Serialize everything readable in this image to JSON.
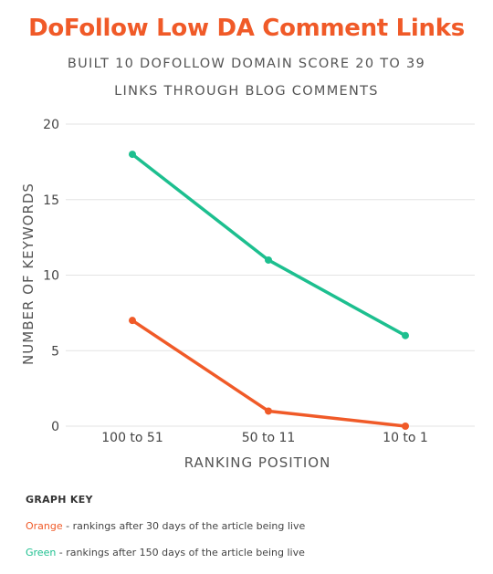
{
  "header": {
    "title": "DoFollow Low DA Comment Links",
    "subtitle_line1": "BUILT 10 DOFOLLOW DOMAIN SCORE 20 TO 39",
    "subtitle_line2": "LINKS THROUGH BLOG COMMENTS"
  },
  "colors": {
    "title": "#f05a28",
    "orange_series": "#f05a28",
    "green_series": "#1dbf8f",
    "grid": "#e3e3e3"
  },
  "chart_data": {
    "type": "line",
    "xlabel": "RANKING POSITION",
    "ylabel": "NUMBER OF KEYWORDS",
    "categories": [
      "100 to 51",
      "50 to 11",
      "10 to 1"
    ],
    "ylim": [
      0,
      20
    ],
    "yticks": [
      "0",
      "5",
      "10",
      "15",
      "20"
    ],
    "grid": true,
    "series": [
      {
        "color": "#f05a28",
        "values": [
          7,
          1,
          0
        ]
      },
      {
        "color": "#1dbf8f",
        "values": [
          18,
          11,
          6
        ]
      }
    ]
  },
  "key": {
    "title": "GRAPH KEY",
    "orange_label": "Orange",
    "orange_text": " - rankings after 30 days of the article being live",
    "green_label": "Green",
    "green_text": " - rankings after 150 days of the article being live"
  }
}
